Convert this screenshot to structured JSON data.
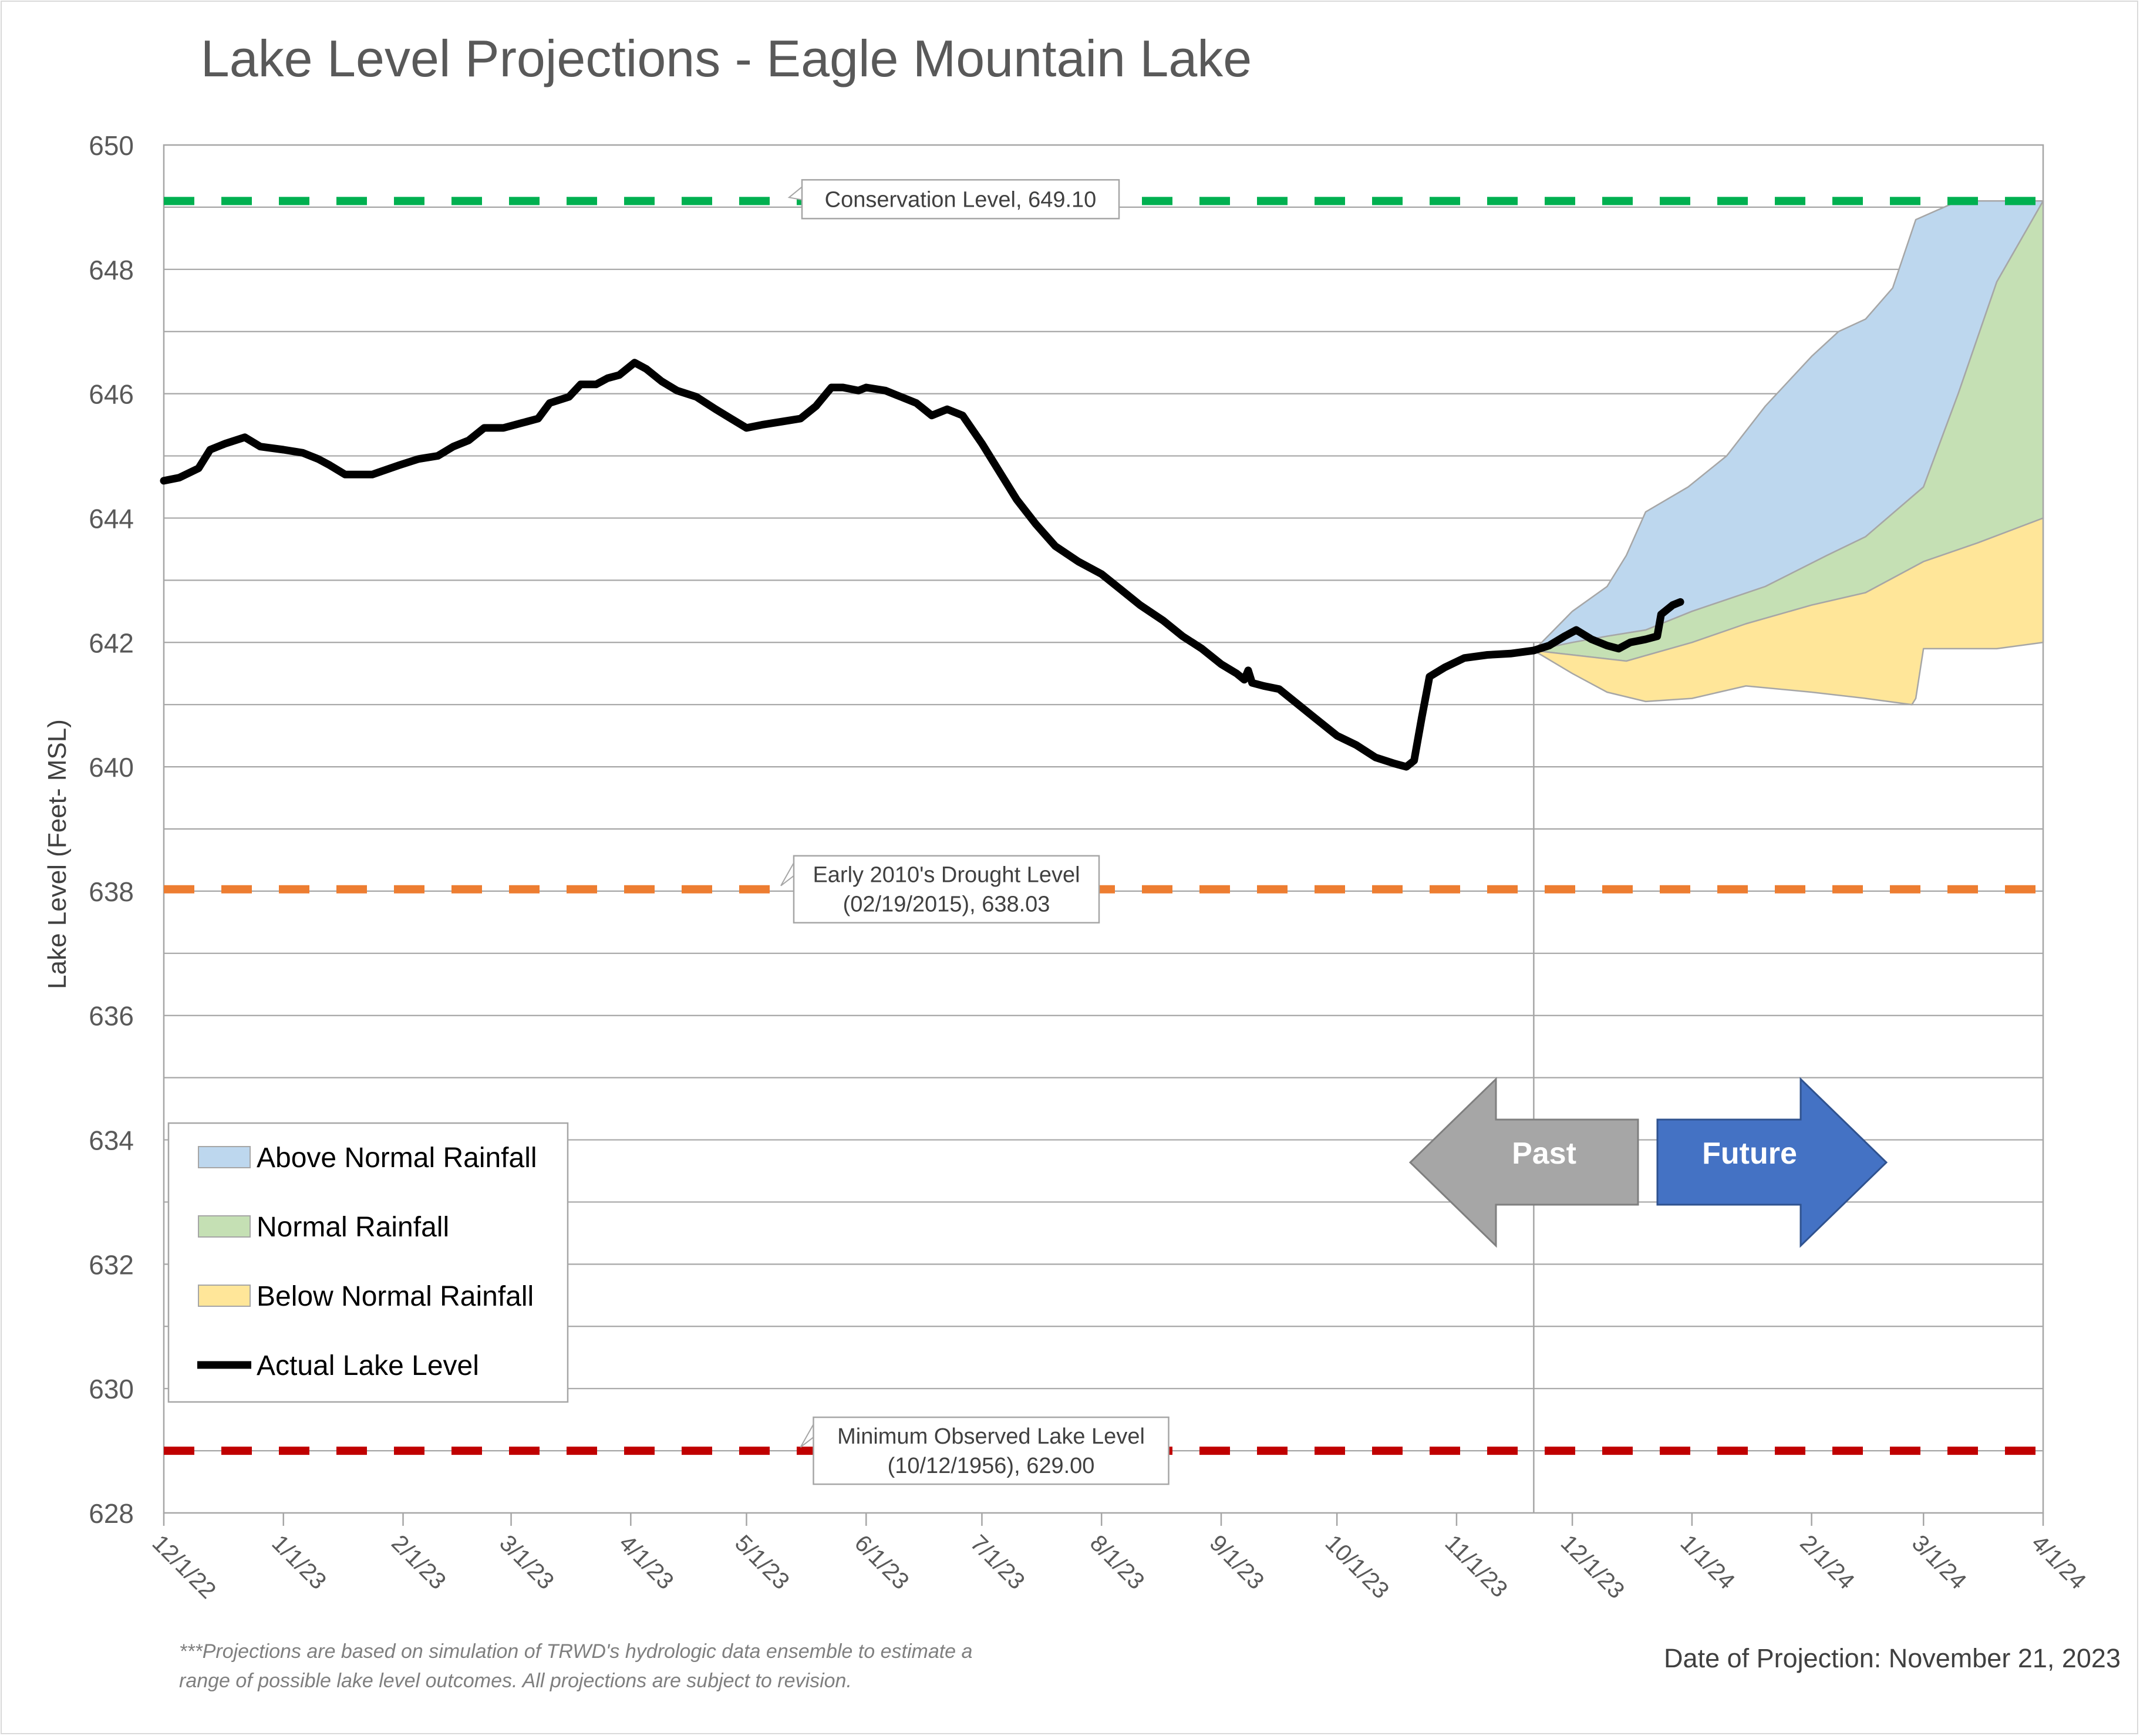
{
  "chart_data": {
    "type": "area",
    "title": "Lake Level Projections - Eagle Mountain Lake",
    "ylabel": "Lake Level (Feet- MSL)",
    "xlabel": "",
    "ylim": [
      628,
      650
    ],
    "yticks": [
      628,
      630,
      632,
      634,
      636,
      638,
      640,
      642,
      644,
      646,
      648,
      650
    ],
    "xlim": [
      "2022-12-01",
      "2024-04-01"
    ],
    "xticks": [
      {
        "date": "2022-12-01",
        "label": "12/1/22"
      },
      {
        "date": "2023-01-01",
        "label": "1/1/23"
      },
      {
        "date": "2023-02-01",
        "label": "2/1/23"
      },
      {
        "date": "2023-03-01",
        "label": "3/1/23"
      },
      {
        "date": "2023-04-01",
        "label": "4/1/23"
      },
      {
        "date": "2023-05-01",
        "label": "5/1/23"
      },
      {
        "date": "2023-06-01",
        "label": "6/1/23"
      },
      {
        "date": "2023-07-01",
        "label": "7/1/23"
      },
      {
        "date": "2023-08-01",
        "label": "8/1/23"
      },
      {
        "date": "2023-09-01",
        "label": "9/1/23"
      },
      {
        "date": "2023-10-01",
        "label": "10/1/23"
      },
      {
        "date": "2023-11-01",
        "label": "11/1/23"
      },
      {
        "date": "2023-12-01",
        "label": "12/1/23"
      },
      {
        "date": "2024-01-01",
        "label": "1/1/24"
      },
      {
        "date": "2024-02-01",
        "label": "2/1/24"
      },
      {
        "date": "2024-03-01",
        "label": "3/1/24"
      },
      {
        "date": "2024-04-01",
        "label": "4/1/24"
      }
    ],
    "grid": true,
    "legend_position": "bottom-left",
    "reference_lines": [
      {
        "name": "Conservation Level",
        "value": 649.1,
        "color": "#00b050",
        "label_lines": [
          "Conservation Level, 649.10"
        ]
      },
      {
        "name": "Early 2010's Drought Level",
        "value": 638.03,
        "color": "#ed7d31",
        "label_lines": [
          "Early 2010's Drought Level",
          "(02/19/2015), 638.03"
        ]
      },
      {
        "name": "Minimum Observed Lake Level",
        "value": 629.0,
        "color": "#c00000",
        "label_lines": [
          "Minimum Observed Lake Level",
          "(10/12/1956), 629.00"
        ]
      }
    ],
    "projection_date": "2023-11-21",
    "series": [
      {
        "name": "Actual Lake Level",
        "kind": "line",
        "color": "#000000",
        "points": [
          [
            "2022-12-01",
            644.6
          ],
          [
            "2022-12-05",
            644.65
          ],
          [
            "2022-12-10",
            644.8
          ],
          [
            "2022-12-13",
            645.1
          ],
          [
            "2022-12-17",
            645.2
          ],
          [
            "2022-12-22",
            645.3
          ],
          [
            "2022-12-26",
            645.15
          ],
          [
            "2023-01-01",
            645.1
          ],
          [
            "2023-01-06",
            645.05
          ],
          [
            "2023-01-10",
            644.95
          ],
          [
            "2023-01-13",
            644.85
          ],
          [
            "2023-01-17",
            644.7
          ],
          [
            "2023-01-24",
            644.7
          ],
          [
            "2023-01-31",
            644.85
          ],
          [
            "2023-02-05",
            644.95
          ],
          [
            "2023-02-10",
            645.0
          ],
          [
            "2023-02-14",
            645.15
          ],
          [
            "2023-02-18",
            645.25
          ],
          [
            "2023-02-22",
            645.45
          ],
          [
            "2023-02-27",
            645.45
          ],
          [
            "2023-03-05",
            645.55
          ],
          [
            "2023-03-08",
            645.6
          ],
          [
            "2023-03-11",
            645.85
          ],
          [
            "2023-03-16",
            645.95
          ],
          [
            "2023-03-19",
            646.15
          ],
          [
            "2023-03-23",
            646.15
          ],
          [
            "2023-03-26",
            646.25
          ],
          [
            "2023-03-29",
            646.3
          ],
          [
            "2023-04-02",
            646.5
          ],
          [
            "2023-04-05",
            646.4
          ],
          [
            "2023-04-09",
            646.2
          ],
          [
            "2023-04-13",
            646.05
          ],
          [
            "2023-04-18",
            645.95
          ],
          [
            "2023-04-23",
            645.75
          ],
          [
            "2023-04-27",
            645.6
          ],
          [
            "2023-05-01",
            645.45
          ],
          [
            "2023-05-05",
            645.5
          ],
          [
            "2023-05-10",
            645.55
          ],
          [
            "2023-05-15",
            645.6
          ],
          [
            "2023-05-19",
            645.8
          ],
          [
            "2023-05-23",
            646.1
          ],
          [
            "2023-05-26",
            646.1
          ],
          [
            "2023-05-30",
            646.05
          ],
          [
            "2023-06-01",
            646.1
          ],
          [
            "2023-06-06",
            646.05
          ],
          [
            "2023-06-10",
            645.95
          ],
          [
            "2023-06-14",
            645.85
          ],
          [
            "2023-06-18",
            645.65
          ],
          [
            "2023-06-22",
            645.75
          ],
          [
            "2023-06-26",
            645.65
          ],
          [
            "2023-07-01",
            645.2
          ],
          [
            "2023-07-05",
            644.8
          ],
          [
            "2023-07-10",
            644.3
          ],
          [
            "2023-07-15",
            643.9
          ],
          [
            "2023-07-20",
            643.55
          ],
          [
            "2023-07-26",
            643.3
          ],
          [
            "2023-08-01",
            643.1
          ],
          [
            "2023-08-06",
            642.85
          ],
          [
            "2023-08-11",
            642.6
          ],
          [
            "2023-08-17",
            642.35
          ],
          [
            "2023-08-22",
            642.1
          ],
          [
            "2023-08-27",
            641.9
          ],
          [
            "2023-09-01",
            641.65
          ],
          [
            "2023-09-05",
            641.5
          ],
          [
            "2023-09-07",
            641.4
          ],
          [
            "2023-09-08",
            641.55
          ],
          [
            "2023-09-09",
            641.35
          ],
          [
            "2023-09-12",
            641.3
          ],
          [
            "2023-09-16",
            641.25
          ],
          [
            "2023-09-20",
            641.05
          ],
          [
            "2023-09-25",
            640.8
          ],
          [
            "2023-10-01",
            640.5
          ],
          [
            "2023-10-06",
            640.35
          ],
          [
            "2023-10-11",
            640.15
          ],
          [
            "2023-10-16",
            640.05
          ],
          [
            "2023-10-19",
            640.0
          ],
          [
            "2023-10-21",
            640.1
          ],
          [
            "2023-10-23",
            640.8
          ],
          [
            "2023-10-25",
            641.45
          ],
          [
            "2023-10-29",
            641.6
          ],
          [
            "2023-11-03",
            641.75
          ],
          [
            "2023-11-09",
            641.8
          ],
          [
            "2023-11-15",
            641.82
          ],
          [
            "2023-11-21",
            641.87
          ],
          [
            "2023-11-25",
            641.95
          ],
          [
            "2023-11-29",
            642.1
          ],
          [
            "2023-12-02",
            642.2
          ],
          [
            "2023-12-06",
            642.05
          ],
          [
            "2023-12-10",
            641.95
          ],
          [
            "2023-12-13",
            641.9
          ],
          [
            "2023-12-16",
            642.0
          ],
          [
            "2023-12-20",
            642.05
          ],
          [
            "2023-12-23",
            642.1
          ],
          [
            "2023-12-24",
            642.45
          ],
          [
            "2023-12-27",
            642.6
          ],
          [
            "2023-12-29",
            642.65
          ]
        ]
      },
      {
        "name": "Above Normal Rainfall",
        "kind": "band",
        "color": "#bdd7ee",
        "upper": [
          [
            "2023-11-21",
            641.87
          ],
          [
            "2023-12-01",
            642.5
          ],
          [
            "2023-12-10",
            642.9
          ],
          [
            "2023-12-15",
            643.4
          ],
          [
            "2023-12-20",
            644.1
          ],
          [
            "2023-12-31",
            644.5
          ],
          [
            "2024-01-10",
            645.0
          ],
          [
            "2024-01-20",
            645.8
          ],
          [
            "2024-02-01",
            646.6
          ],
          [
            "2024-02-08",
            647.0
          ],
          [
            "2024-02-15",
            647.2
          ],
          [
            "2024-02-22",
            647.7
          ],
          [
            "2024-02-28",
            648.8
          ],
          [
            "2024-03-10",
            649.1
          ],
          [
            "2024-04-01",
            649.1
          ]
        ],
        "lower": [
          [
            "2023-11-21",
            641.87
          ],
          [
            "2023-12-01",
            642.0
          ],
          [
            "2023-12-10",
            642.1
          ],
          [
            "2023-12-20",
            642.2
          ],
          [
            "2024-01-01",
            642.5
          ],
          [
            "2024-01-20",
            642.9
          ],
          [
            "2024-02-05",
            643.4
          ],
          [
            "2024-02-15",
            643.7
          ],
          [
            "2024-03-01",
            644.5
          ],
          [
            "2024-03-10",
            646.0
          ],
          [
            "2024-03-20",
            647.8
          ],
          [
            "2024-04-01",
            649.1
          ]
        ]
      },
      {
        "name": "Normal Rainfall",
        "kind": "band",
        "color": "#c5e0b4",
        "upper": [
          [
            "2023-11-21",
            641.87
          ],
          [
            "2023-12-01",
            642.0
          ],
          [
            "2023-12-10",
            642.1
          ],
          [
            "2023-12-20",
            642.2
          ],
          [
            "2024-01-01",
            642.5
          ],
          [
            "2024-01-20",
            642.9
          ],
          [
            "2024-02-05",
            643.4
          ],
          [
            "2024-02-15",
            643.7
          ],
          [
            "2024-03-01",
            644.5
          ],
          [
            "2024-03-10",
            646.0
          ],
          [
            "2024-03-20",
            647.8
          ],
          [
            "2024-04-01",
            649.1
          ]
        ],
        "lower": [
          [
            "2023-11-21",
            641.87
          ],
          [
            "2023-12-01",
            641.8
          ],
          [
            "2023-12-15",
            641.7
          ],
          [
            "2024-01-01",
            642.0
          ],
          [
            "2024-01-15",
            642.3
          ],
          [
            "2024-02-01",
            642.6
          ],
          [
            "2024-02-15",
            642.8
          ],
          [
            "2024-03-01",
            643.3
          ],
          [
            "2024-03-15",
            643.6
          ],
          [
            "2024-04-01",
            644.0
          ]
        ]
      },
      {
        "name": "Below Normal Rainfall",
        "kind": "band",
        "color": "#ffe699",
        "upper": [
          [
            "2023-11-21",
            641.87
          ],
          [
            "2023-12-01",
            641.8
          ],
          [
            "2023-12-15",
            641.7
          ],
          [
            "2024-01-01",
            642.0
          ],
          [
            "2024-01-15",
            642.3
          ],
          [
            "2024-02-01",
            642.6
          ],
          [
            "2024-02-15",
            642.8
          ],
          [
            "2024-03-01",
            643.3
          ],
          [
            "2024-03-15",
            643.6
          ],
          [
            "2024-04-01",
            644.0
          ]
        ],
        "lower": [
          [
            "2023-11-21",
            641.87
          ],
          [
            "2023-12-01",
            641.5
          ],
          [
            "2023-12-10",
            641.2
          ],
          [
            "2023-12-20",
            641.05
          ],
          [
            "2024-01-01",
            641.1
          ],
          [
            "2024-01-15",
            641.3
          ],
          [
            "2024-02-01",
            641.2
          ],
          [
            "2024-02-15",
            641.1
          ],
          [
            "2024-02-27",
            641.0
          ],
          [
            "2024-02-28",
            641.1
          ],
          [
            "2024-03-01",
            641.9
          ],
          [
            "2024-03-20",
            641.9
          ],
          [
            "2024-04-01",
            642.0
          ]
        ]
      }
    ],
    "legend": [
      {
        "label": "Above Normal Rainfall",
        "kind": "swatch",
        "color": "#bdd7ee"
      },
      {
        "label": "Normal Rainfall",
        "kind": "swatch",
        "color": "#c5e0b4"
      },
      {
        "label": "Below Normal Rainfall",
        "kind": "swatch",
        "color": "#ffe699"
      },
      {
        "label": "Actual Lake Level",
        "kind": "line",
        "color": "#000000"
      }
    ],
    "arrows": [
      {
        "label": "Past",
        "direction": "left",
        "color": "#a6a6a6"
      },
      {
        "label": "Future",
        "direction": "right",
        "color": "#4472c4"
      }
    ],
    "footnote_lines": [
      "***Projections are based on simulation of TRWD's hydrologic data ensemble to estimate a",
      "range of possible lake level outcomes.  All projections are subject to revision."
    ],
    "date_of_projection_label": "Date of Projection: November 21, 2023"
  }
}
